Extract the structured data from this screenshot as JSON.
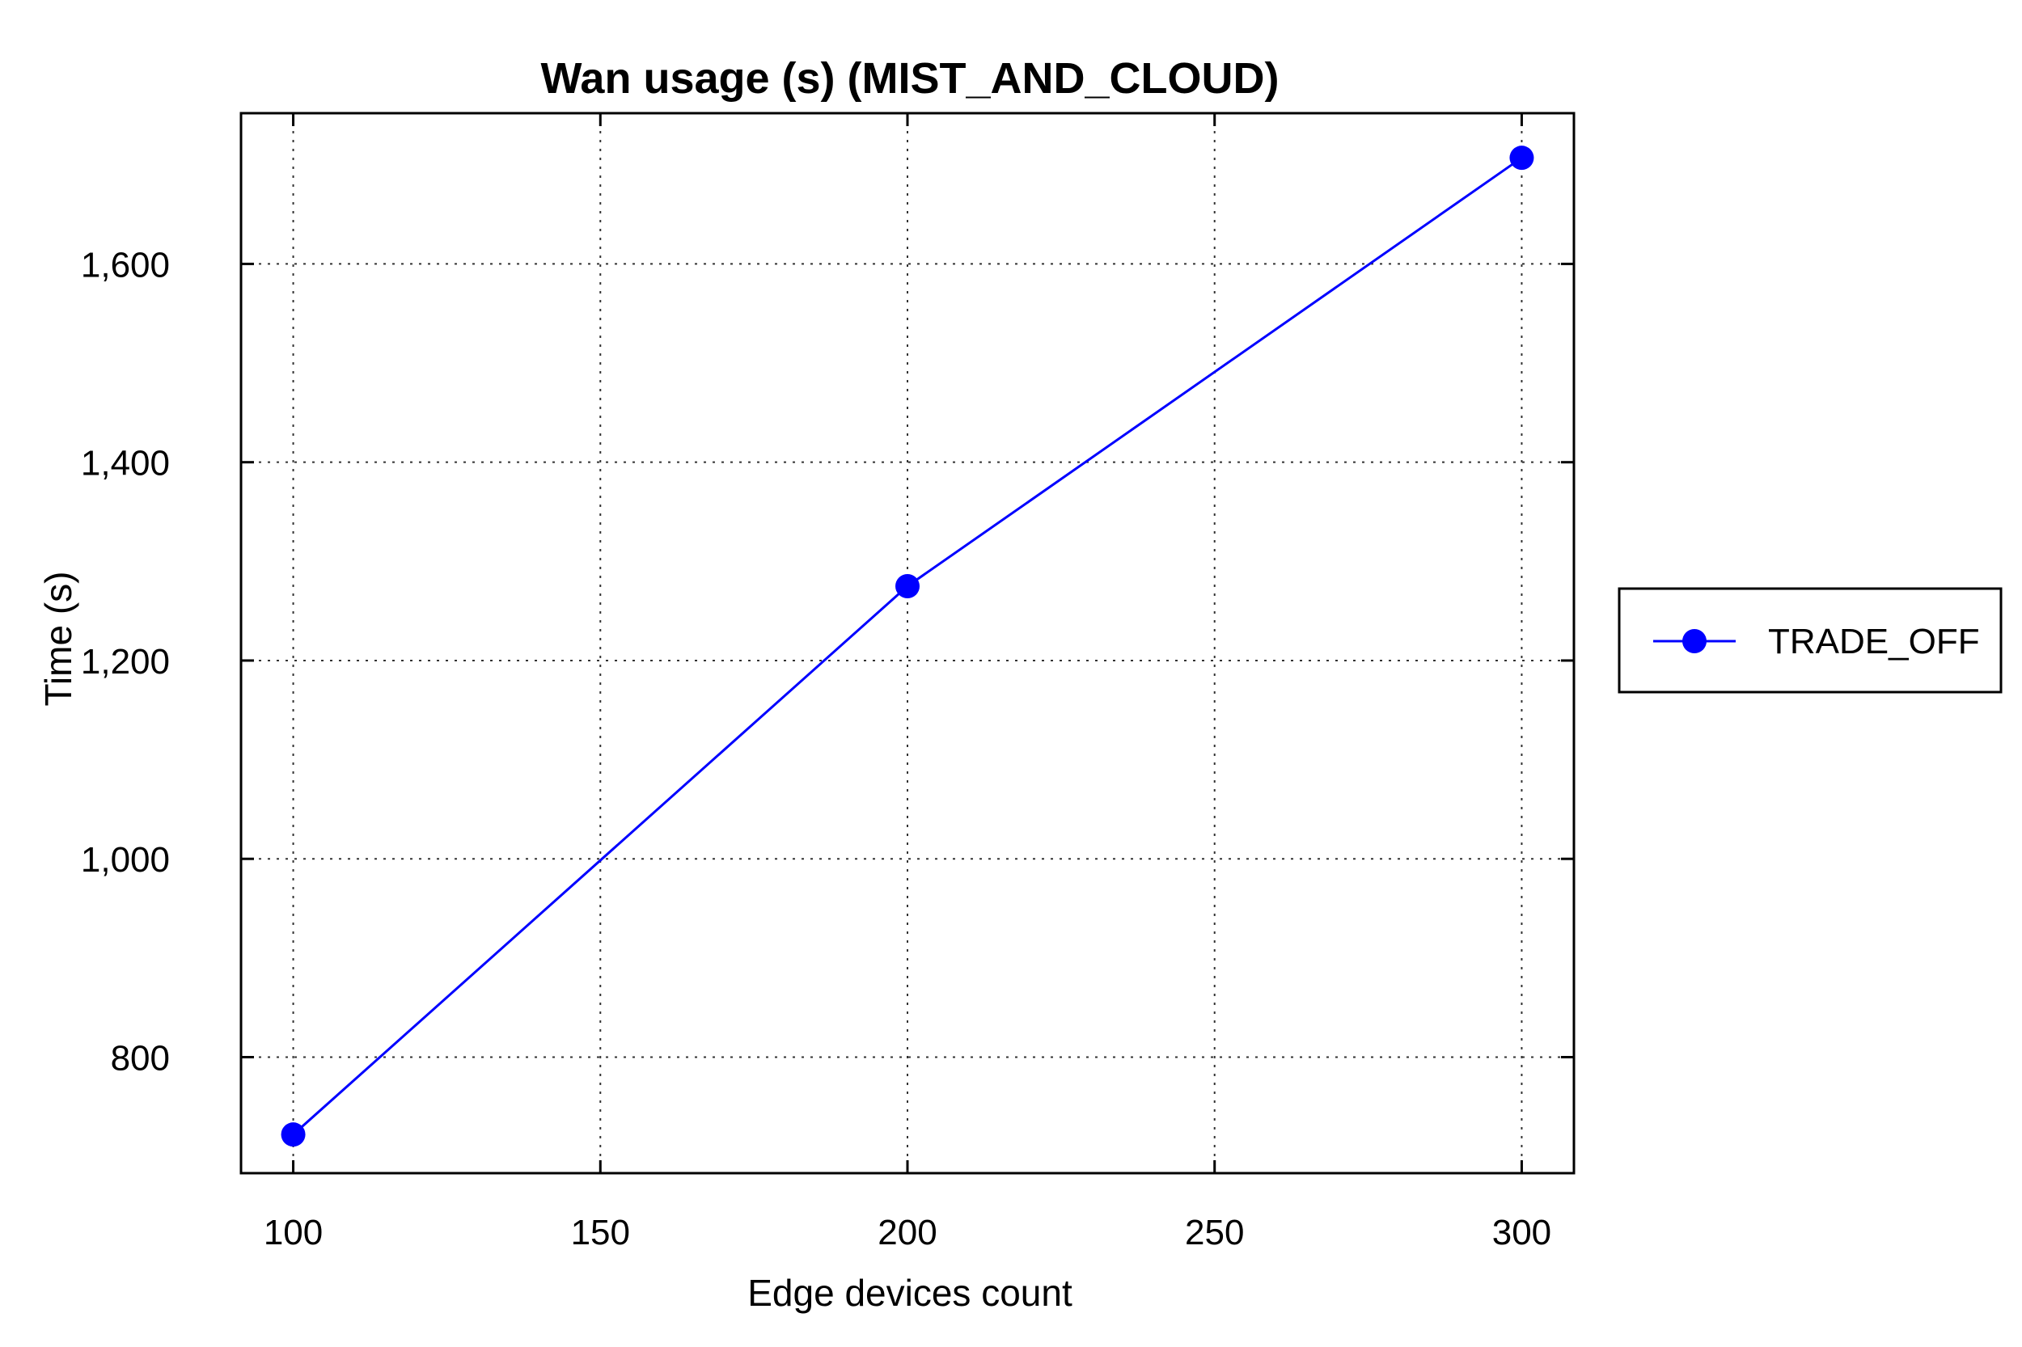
{
  "chart_data": {
    "type": "line",
    "title": "Wan usage (s) (MIST_AND_CLOUD)",
    "xlabel": "Edge devices count",
    "ylabel": "Time (s)",
    "x": [
      100,
      200,
      300
    ],
    "series": [
      {
        "name": "TRADE_OFF",
        "values": [
          722,
          1275,
          1707
        ],
        "color": "#0000ff",
        "marker": "circle"
      }
    ],
    "xlim": [
      91.5,
      308.5
    ],
    "ylim": [
      683,
      1752
    ],
    "xticks": [
      100,
      150,
      200,
      250,
      300
    ],
    "xtick_labels": [
      "100",
      "150",
      "200",
      "250",
      "300"
    ],
    "yticks": [
      800,
      1000,
      1200,
      1400,
      1600
    ],
    "ytick_labels": [
      "800",
      "1,000",
      "1,200",
      "1,400",
      "1,600"
    ],
    "grid": true,
    "grid_style": "dotted",
    "legend_position": "right"
  }
}
